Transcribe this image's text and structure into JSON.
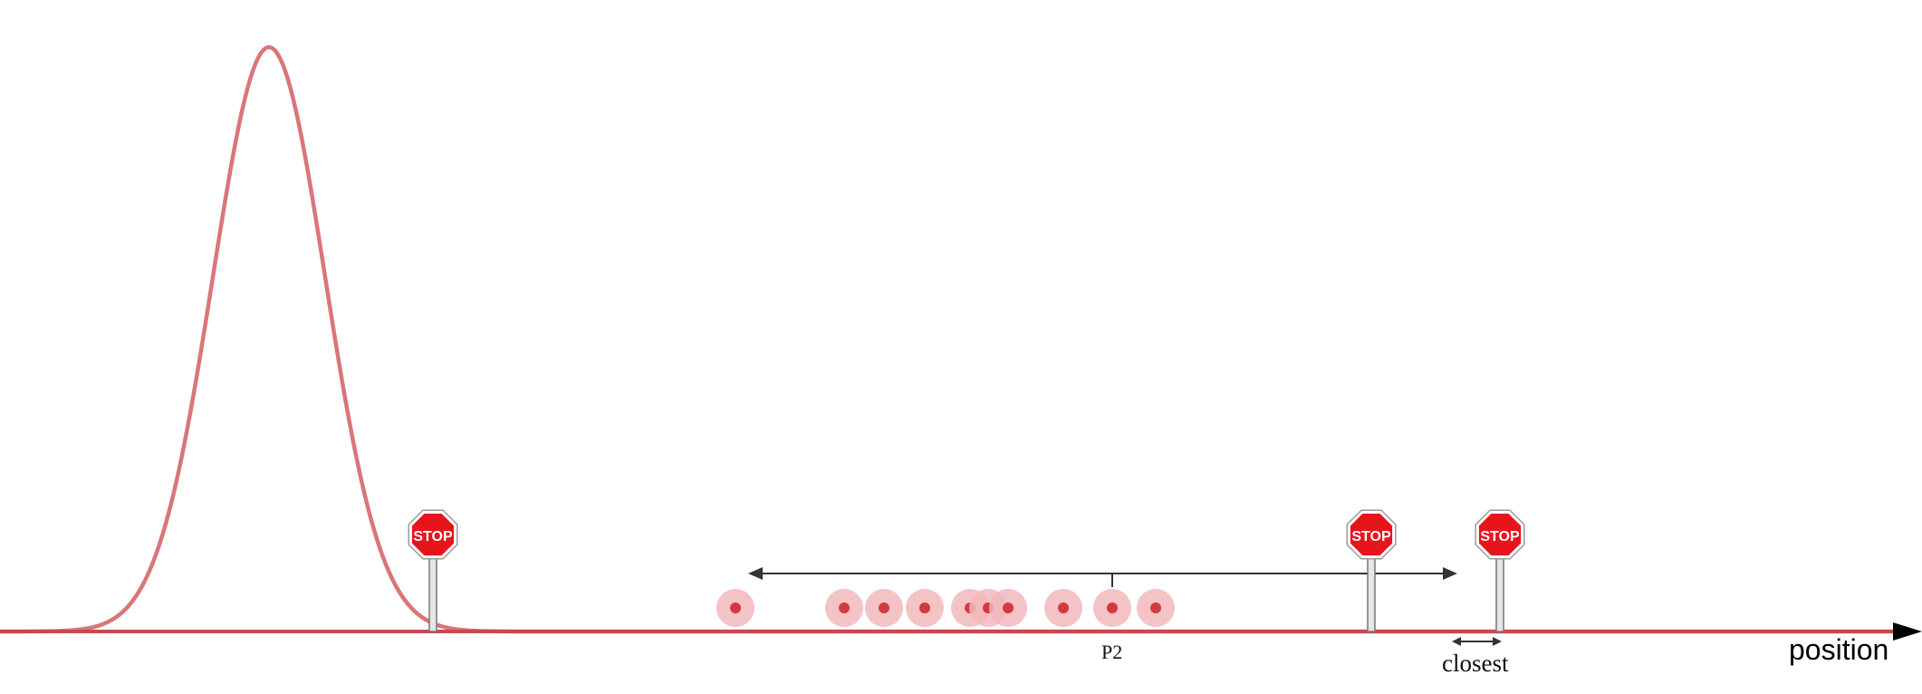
{
  "diagram": {
    "axis_label": "position",
    "interval_label": "P2",
    "closest_label": "closest",
    "stop_sign_text": "STOP",
    "stop_sign_count": 3,
    "dot_count": 10,
    "colors": {
      "curve": "#d9767a",
      "baseline": "#c9484e",
      "dot_halo": "#f2b9bb",
      "dot_core": "#d13a40",
      "stop_red": "#e8141c",
      "arrow": "#333333",
      "text": "#111111"
    },
    "icons": {
      "stop_sign": "stop-sign-icon",
      "dot": "particle-dot-icon",
      "axis_arrow": "arrow-right-icon",
      "interval_arrow": "double-arrow-icon"
    }
  }
}
